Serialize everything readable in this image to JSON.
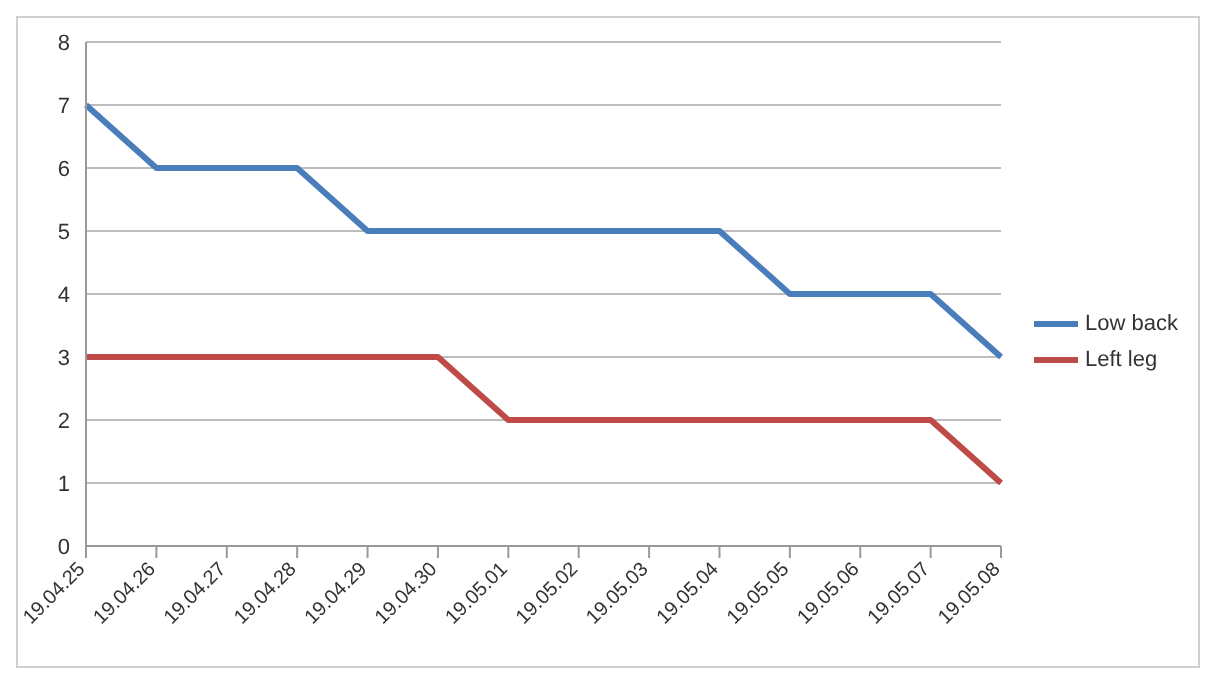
{
  "chart_data": {
    "type": "line",
    "categories": [
      "19.04.25",
      "19.04.26",
      "19.04.27",
      "19.04.28",
      "19.04.29",
      "19.04.30",
      "19.05.01",
      "19.05.02",
      "19.05.03",
      "19.05.04",
      "19.05.05",
      "19.05.06",
      "19.05.07",
      "19.05.08"
    ],
    "series": [
      {
        "name": "Low back",
        "color": "#4a7ebb",
        "values": [
          7,
          6,
          6,
          6,
          5,
          5,
          5,
          5,
          5,
          5,
          4,
          4,
          4,
          3
        ]
      },
      {
        "name": "Left leg",
        "color": "#be4b48",
        "values": [
          3,
          3,
          3,
          3,
          3,
          3,
          2,
          2,
          2,
          2,
          2,
          2,
          2,
          1
        ]
      }
    ],
    "ylim": [
      0,
      8
    ],
    "yticks": [
      0,
      1,
      2,
      3,
      4,
      5,
      6,
      7,
      8
    ],
    "grid": "y",
    "legend": "right",
    "marker": "none",
    "line_style": "solid"
  }
}
